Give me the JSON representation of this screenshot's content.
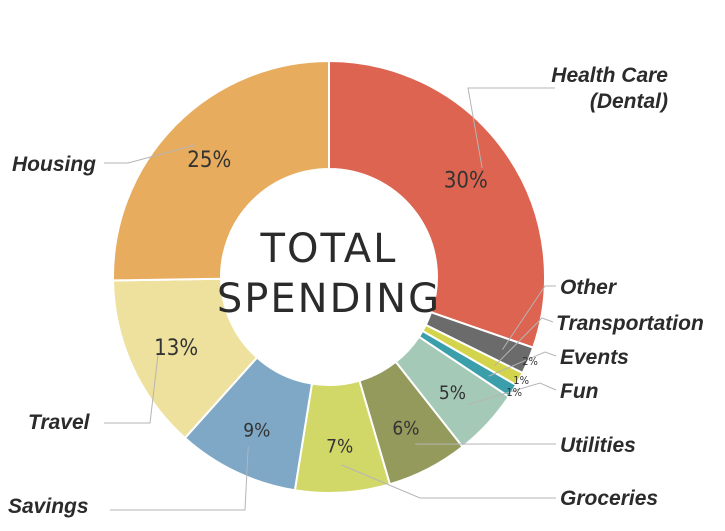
{
  "chart_data": {
    "type": "pie",
    "variant": "donut",
    "title": "Total Spending",
    "center_label": [
      "TOTAL",
      "SPENDING"
    ],
    "slices": [
      {
        "label": "Health Care (Dental)",
        "lines": [
          "Health Care",
          "(Dental)"
        ],
        "value": 30,
        "pct_label": "30%",
        "color": "#dc6450"
      },
      {
        "label": "Other",
        "lines": [
          "Other"
        ],
        "value": 2,
        "pct_label": "2%",
        "color": "#6b6b6b"
      },
      {
        "label": "Transportation",
        "lines": [
          "Transportation"
        ],
        "value": 1,
        "pct_label": "1%",
        "color": "#d4d44c"
      },
      {
        "label": "Events",
        "lines": [
          "Events"
        ],
        "value": 1,
        "pct_label": "1%",
        "color": "#3b9eab"
      },
      {
        "label": "Fun",
        "lines": [
          "Fun"
        ],
        "value": 5,
        "pct_label": "5%",
        "color": "#a4c9b6"
      },
      {
        "label": "Utilities",
        "lines": [
          "Utilities"
        ],
        "value": 6,
        "pct_label": "6%",
        "color": "#939a5c"
      },
      {
        "label": "Groceries",
        "lines": [
          "Groceries"
        ],
        "value": 7,
        "pct_label": "7%",
        "color": "#d1d867"
      },
      {
        "label": "Savings",
        "lines": [
          "Savings"
        ],
        "value": 9,
        "pct_label": "9%",
        "color": "#7ea8c5"
      },
      {
        "label": "Travel",
        "lines": [
          "Travel"
        ],
        "value": 13,
        "pct_label": "13%",
        "color": "#ede19d"
      },
      {
        "label": "Housing",
        "lines": [
          "Housing"
        ],
        "value": 25,
        "pct_label": "25%",
        "color": "#e8ac5e"
      }
    ]
  }
}
